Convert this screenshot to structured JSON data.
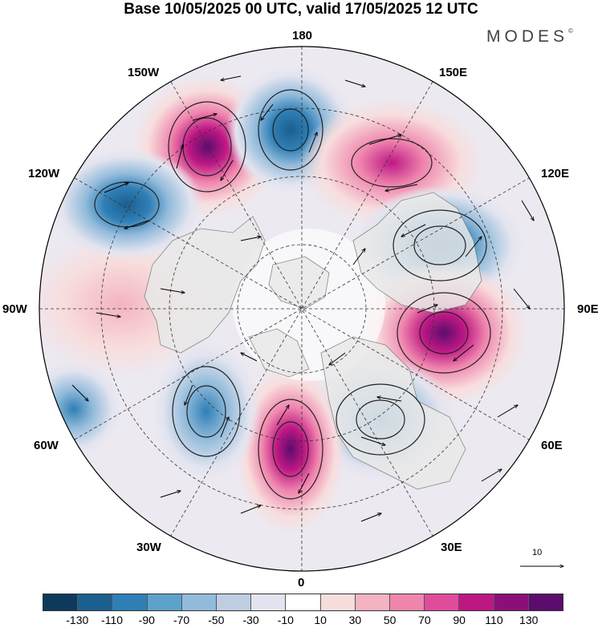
{
  "title": "Base 10/05/2025 00 UTC, valid 17/05/2025 12 UTC",
  "brand": {
    "name": "MODES",
    "mark": "©"
  },
  "lon_labels": {
    "deg180": "180",
    "e150": "150E",
    "e120": "120E",
    "e90": "90E",
    "e60": "60E",
    "e30": "30E",
    "deg0": "0",
    "w30": "30W",
    "w60": "60W",
    "w90": "90W",
    "w120": "120W",
    "w150": "150W"
  },
  "vector_scale": {
    "label": "10"
  },
  "colorbar": {
    "colors": [
      "#0d3a5c",
      "#1b5f8f",
      "#2f7fb6",
      "#5da2cc",
      "#92bbdb",
      "#bfcde3",
      "#e3e4ef",
      "#ffffff",
      "#f8dddd",
      "#f3b3c1",
      "#ef85ad",
      "#e04c9a",
      "#bd1784",
      "#8a0f79",
      "#5c0c6d"
    ],
    "labels": [
      "-130",
      "-110",
      "-90",
      "-70",
      "-50",
      "-30",
      "-10",
      "10",
      "30",
      "50",
      "70",
      "90",
      "110",
      "130"
    ]
  },
  "anomaly_field": {
    "units_legend": "colorbar",
    "centers": [
      {
        "lon": -150,
        "sign": "positive",
        "strength": 130
      },
      {
        "lon": 175,
        "sign": "negative",
        "strength": 110
      },
      {
        "lon": 140,
        "sign": "positive",
        "strength": 90
      },
      {
        "lon": 110,
        "sign": "negative",
        "strength": 110
      },
      {
        "lon": 85,
        "sign": "positive",
        "strength": 130
      },
      {
        "lon": 45,
        "sign": "negative",
        "strength": 90
      },
      {
        "lon": 5,
        "sign": "positive",
        "strength": 130
      },
      {
        "lon": -30,
        "sign": "negative",
        "strength": 90
      },
      {
        "lon": -60,
        "sign": "negative",
        "strength": 70
      },
      {
        "lon": -95,
        "sign": "positive",
        "strength": 50
      },
      {
        "lon": -125,
        "sign": "negative",
        "strength": 90
      }
    ]
  }
}
